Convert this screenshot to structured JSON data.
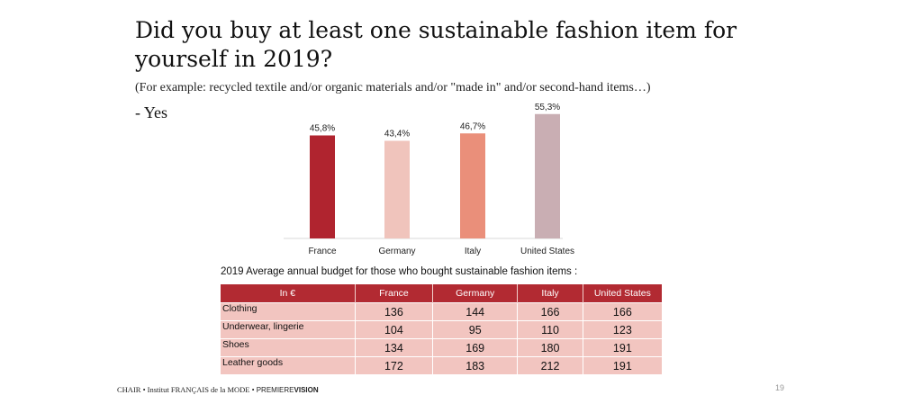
{
  "slide": {
    "title": "Did you buy at least one sustainable fashion item for yourself in 2019?",
    "subtitle": "(For example: recycled textile and/or organic materials and/or \"made in\" and/or second-hand items…)",
    "answer": "- Yes"
  },
  "chart_data": {
    "type": "bar",
    "categories": [
      "France",
      "Germany",
      "Italy",
      "United States"
    ],
    "values": [
      45.8,
      43.4,
      46.7,
      55.3
    ],
    "data_labels": [
      "45,8%",
      "43,4%",
      "46,7%",
      "55,3%"
    ],
    "bar_colors": [
      "#b0242f",
      "#f0c4bc",
      "#ea8f7a",
      "#c9aeb3"
    ],
    "ylim": [
      0,
      60
    ],
    "grid": false,
    "legend": "none"
  },
  "table": {
    "caption": "2019 Average annual budget for those who bought sustainable fashion items :",
    "header_color": "#b22a32",
    "cell_color": "#f2c5c0",
    "headers": [
      "In €",
      "France",
      "Germany",
      "Italy",
      "United States"
    ],
    "rows": [
      {
        "label": "Clothing",
        "values": [
          "136",
          "144",
          "166",
          "166"
        ]
      },
      {
        "label": "Underwear, lingerie",
        "values": [
          "104",
          "95",
          "110",
          "123"
        ]
      },
      {
        "label": "Shoes",
        "values": [
          "134",
          "169",
          "180",
          "191"
        ]
      },
      {
        "label": "Leather goods",
        "values": [
          "172",
          "183",
          "212",
          "191"
        ]
      }
    ]
  },
  "footer": {
    "left": "CHAIR • Institut FRANÇAIS de la MODE •",
    "brand_light": "PREMIERE",
    "brand_bold": "VISION",
    "page_number": "19"
  }
}
